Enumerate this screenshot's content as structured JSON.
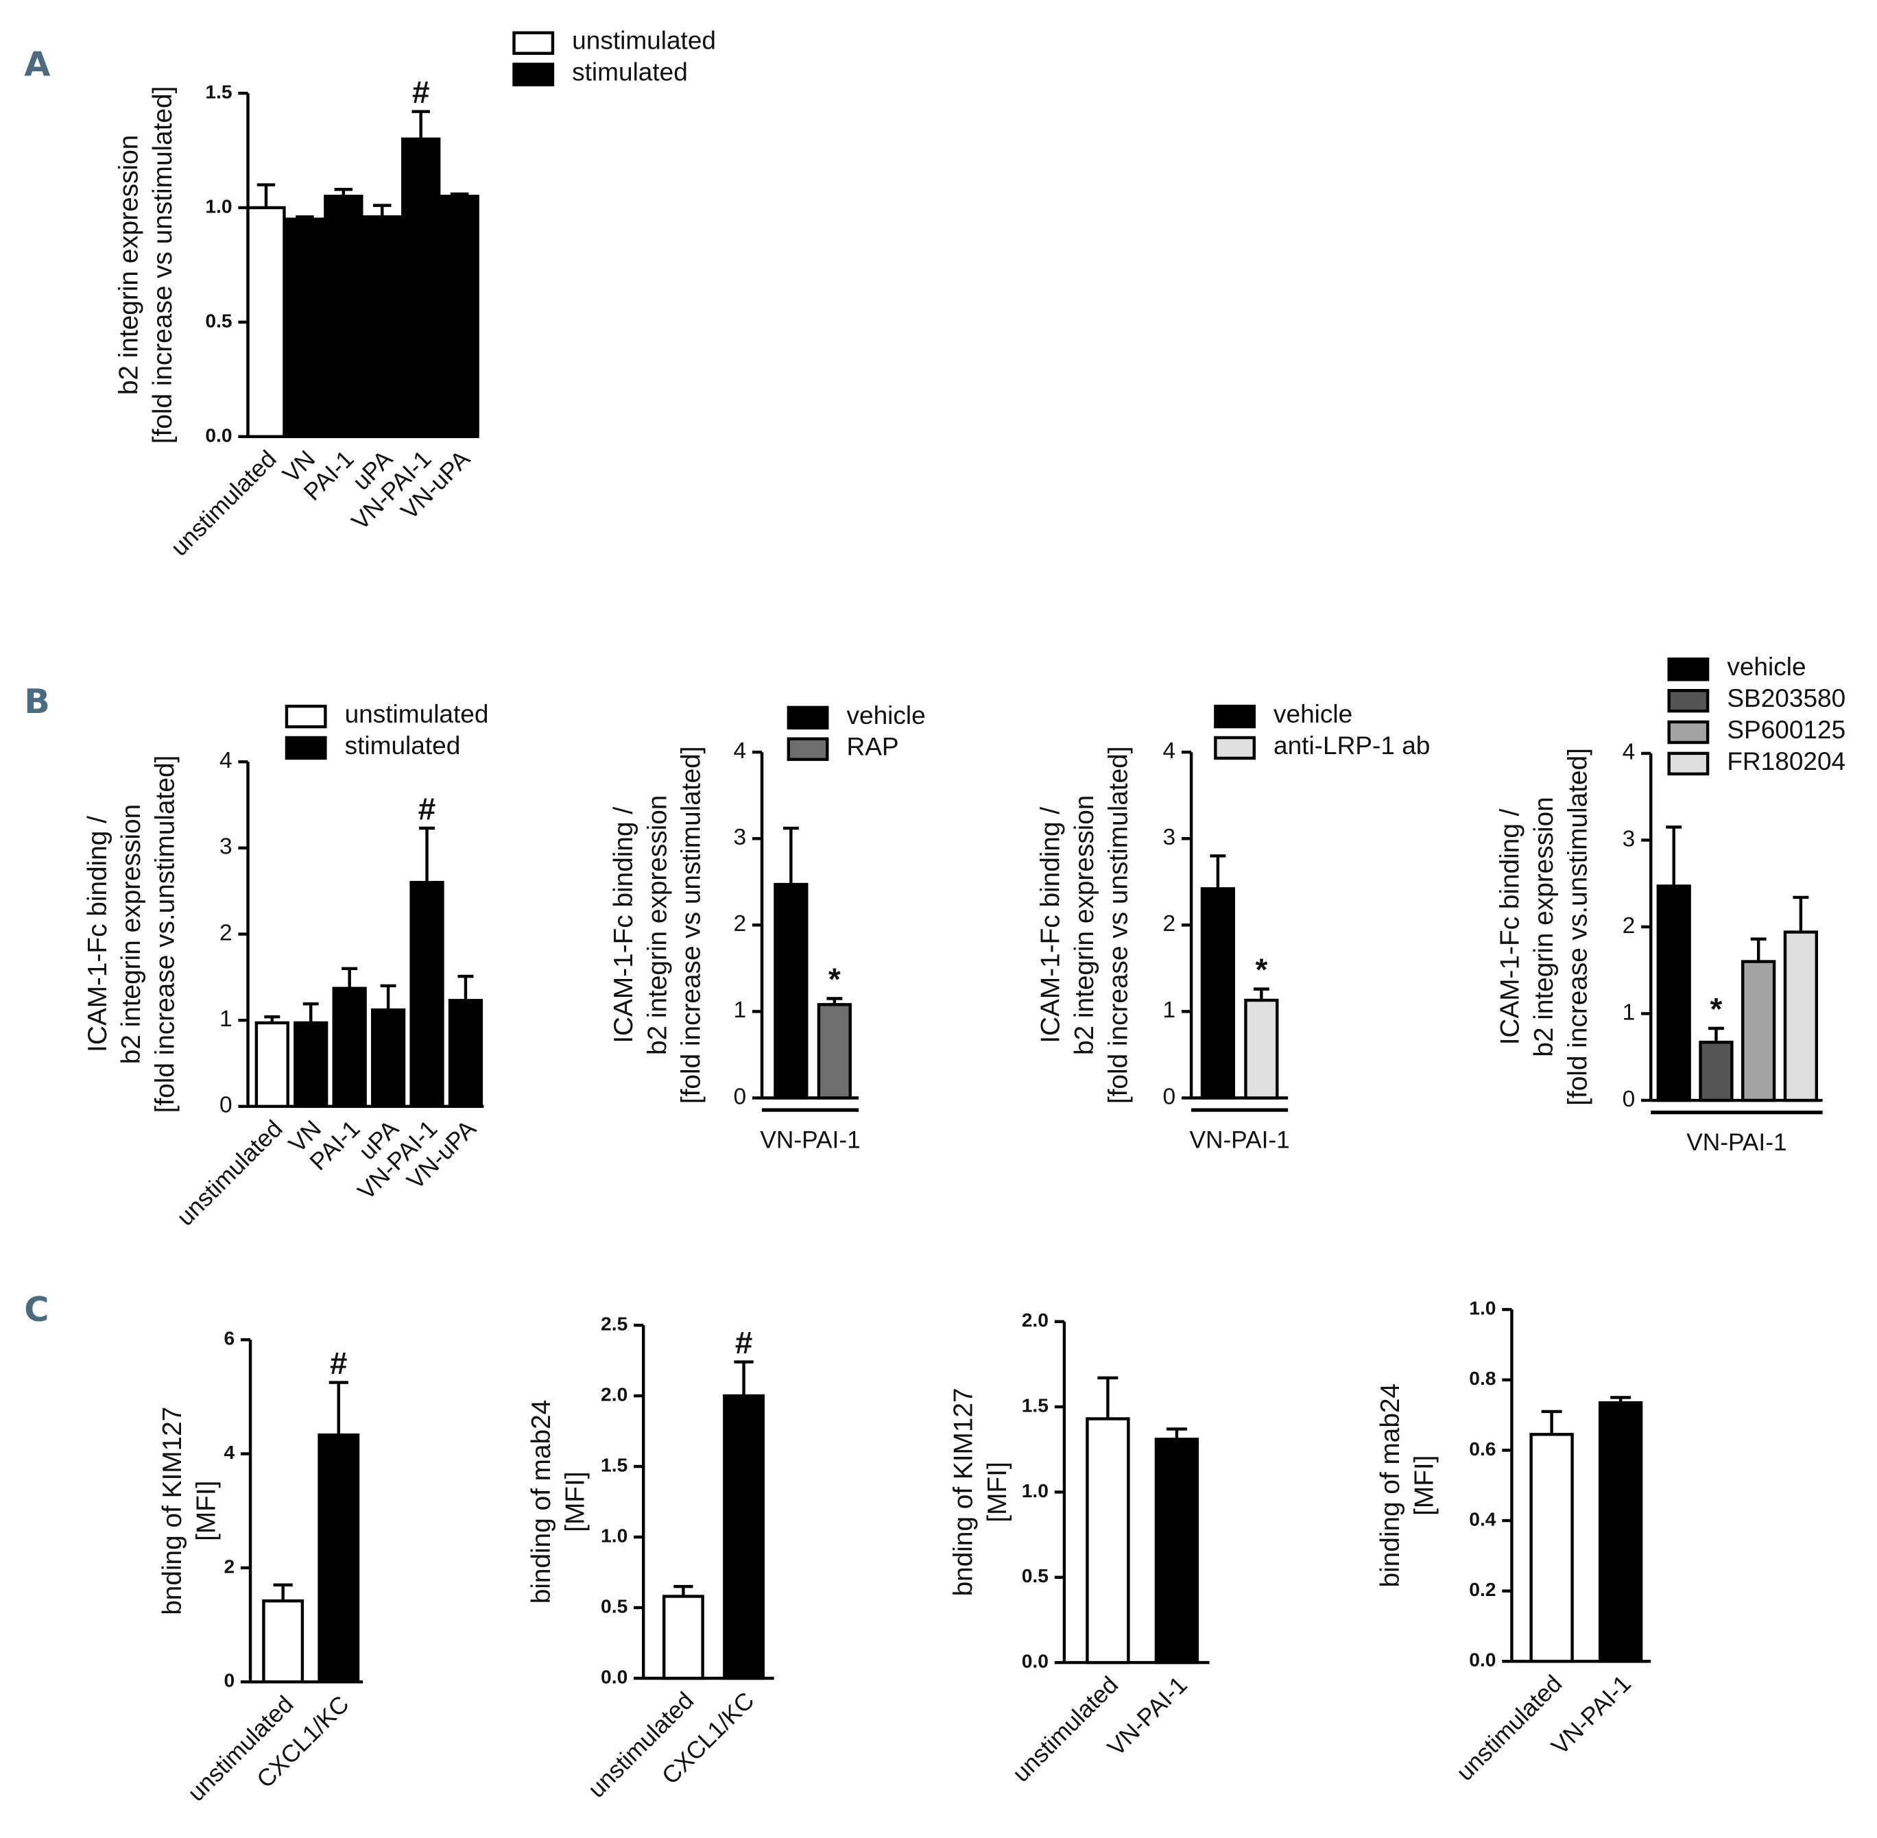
{
  "panels": [
    "A",
    "B",
    "C"
  ],
  "chart_data": [
    {
      "type": "bar",
      "ylabel": [
        "b2 integrin expression",
        "[fold increase vs unstimulated]"
      ],
      "categories": [
        "unstimulated",
        "VN",
        "PAI-1",
        "uPA",
        "VN-PAI-1",
        "VN-uPA"
      ],
      "values": [
        1.0,
        0.95,
        1.05,
        0.96,
        1.3,
        1.05
      ],
      "errors": [
        0.1,
        0.01,
        0.03,
        0.05,
        0.12,
        0.01
      ],
      "significance": [
        null,
        null,
        null,
        null,
        "#",
        null
      ],
      "colors": [
        "#ffffff",
        "#000000",
        "#000000",
        "#000000",
        "#000000",
        "#000000"
      ],
      "legend": [
        {
          "name": "unstimulated",
          "color": "#ffffff"
        },
        {
          "name": "stimulated",
          "color": "#000000"
        }
      ],
      "ylim": [
        0,
        1.5
      ],
      "yticks": [
        {
          "value": 0,
          "label": "0.0"
        },
        {
          "value": 0.5,
          "label": "0.5"
        },
        {
          "value": 1,
          "label": "1.0"
        },
        1.5
      ]
    },
    {
      "type": "bar",
      "ylabel": [
        "ICAM-1-Fc binding /",
        "b2 integrin expression",
        "[fold increase vs.unstimulated]"
      ],
      "categories": [
        "unstimulated",
        "VN",
        "PAI-1",
        "uPA",
        "VN-PAI-1",
        "VN-uPA"
      ],
      "values": [
        0.97,
        0.97,
        1.37,
        1.12,
        2.6,
        1.23
      ],
      "errors": [
        0.07,
        0.22,
        0.23,
        0.28,
        0.63,
        0.28
      ],
      "significance": [
        null,
        null,
        null,
        null,
        "#",
        null
      ],
      "colors": [
        "#ffffff",
        "#000000",
        "#000000",
        "#000000",
        "#000000",
        "#000000"
      ],
      "legend": [
        {
          "name": "unstimulated",
          "color": "#ffffff"
        },
        {
          "name": "stimulated",
          "color": "#000000"
        }
      ],
      "ylim": [
        0,
        4
      ],
      "yticks": [
        0,
        1,
        2,
        3,
        4
      ]
    },
    {
      "type": "grouped_bar",
      "ylabel": [
        "ICAM-1-Fc binding /",
        "b2 integrin expression",
        "[fold increase vs unstimulated]"
      ],
      "categories": [
        "VN-PAI-1"
      ],
      "series": [
        {
          "name": "vehicle",
          "color": "#000000",
          "values": [
            2.47
          ],
          "errors": [
            0.65
          ],
          "significance": [
            null
          ]
        },
        {
          "name": "RAP",
          "color": "#6e6e6e",
          "values": [
            1.08
          ],
          "errors": [
            0.07
          ],
          "significance": [
            "*"
          ]
        }
      ],
      "ylim": [
        0,
        4
      ],
      "yticks": [
        0,
        1,
        2,
        3,
        4
      ]
    },
    {
      "type": "grouped_bar",
      "ylabel": [
        "ICAM-1-Fc binding /",
        "b2 integrin expression",
        "[fold increase vs unstimulated]"
      ],
      "categories": [
        "VN-PAI-1"
      ],
      "series": [
        {
          "name": "vehicle",
          "color": "#000000",
          "values": [
            2.42
          ],
          "errors": [
            0.38
          ],
          "significance": [
            null
          ]
        },
        {
          "name": "anti-LRP-1 ab",
          "color": "#e0e0e0",
          "values": [
            1.13
          ],
          "errors": [
            0.13
          ],
          "significance": [
            "*"
          ]
        }
      ],
      "ylim": [
        0,
        4
      ],
      "yticks": [
        0,
        1,
        2,
        3,
        4
      ]
    },
    {
      "type": "grouped_bar",
      "ylabel": [
        "ICAM-1-Fc binding /",
        "b2 integrin expression",
        "[fold increase vs.unstimulated]"
      ],
      "categories": [
        "VN-PAI-1"
      ],
      "series": [
        {
          "name": "vehicle",
          "color": "#000000",
          "values": [
            2.47
          ],
          "errors": [
            0.68
          ],
          "significance": [
            null
          ]
        },
        {
          "name": "SB203580",
          "color": "#555555",
          "values": [
            0.67
          ],
          "errors": [
            0.16
          ],
          "significance": [
            "*"
          ]
        },
        {
          "name": "SP600125",
          "color": "#a3a3a3",
          "values": [
            1.6
          ],
          "errors": [
            0.26
          ],
          "significance": [
            null
          ]
        },
        {
          "name": "FR180204",
          "color": "#dedede",
          "values": [
            1.94
          ],
          "errors": [
            0.4
          ],
          "significance": [
            null
          ]
        }
      ],
      "ylim": [
        0,
        4
      ],
      "yticks": [
        0,
        1,
        2,
        3,
        4
      ]
    },
    {
      "type": "bar",
      "ylabel": [
        "bnding of KIM127",
        "[MFI]"
      ],
      "categories": [
        "unstimulated",
        "CXCL1/KC"
      ],
      "values": [
        1.42,
        4.33
      ],
      "errors": [
        0.28,
        0.92
      ],
      "significance": [
        null,
        "#"
      ],
      "colors": [
        "#ffffff",
        "#000000"
      ],
      "ylim": [
        0,
        6
      ],
      "yticks": [
        0,
        2,
        4,
        6
      ]
    },
    {
      "type": "bar",
      "ylabel": [
        "binding of mab24",
        "[MFI]"
      ],
      "categories": [
        "unstimulated",
        "CXCL1/KC"
      ],
      "values": [
        0.58,
        2.0
      ],
      "errors": [
        0.07,
        0.24
      ],
      "significance": [
        null,
        "#"
      ],
      "colors": [
        "#ffffff",
        "#000000"
      ],
      "ylim": [
        0,
        2.5
      ],
      "yticks": [
        {
          "value": 0,
          "label": "0.0"
        },
        0.5,
        {
          "value": 1,
          "label": "1.0"
        },
        1.5,
        {
          "value": 2,
          "label": "2.0"
        },
        2.5
      ]
    },
    {
      "type": "bar",
      "ylabel": [
        "bnding of KIM127",
        "[MFI]"
      ],
      "categories": [
        "unstimulated",
        "VN-PAI-1"
      ],
      "values": [
        1.43,
        1.31
      ],
      "errors": [
        0.24,
        0.06
      ],
      "significance": [
        null,
        null
      ],
      "colors": [
        "#ffffff",
        "#000000"
      ],
      "ylim": [
        0,
        2
      ],
      "yticks": [
        {
          "value": 0,
          "label": "0.0"
        },
        0.5,
        {
          "value": 1,
          "label": "1.0"
        },
        1.5,
        {
          "value": 2,
          "label": "2.0"
        }
      ]
    },
    {
      "type": "bar",
      "ylabel": [
        "binding of mab24",
        "[MFI]"
      ],
      "categories": [
        "unstimulated",
        "VN-PAI-1"
      ],
      "values": [
        0.645,
        0.735
      ],
      "errors": [
        0.065,
        0.015
      ],
      "significance": [
        null,
        null
      ],
      "colors": [
        "#ffffff",
        "#000000"
      ],
      "ylim": [
        0,
        1
      ],
      "yticks": [
        {
          "value": 0,
          "label": "0.0"
        },
        0.2,
        0.4,
        0.6,
        0.8,
        {
          "value": 1,
          "label": "1.0"
        }
      ]
    }
  ]
}
